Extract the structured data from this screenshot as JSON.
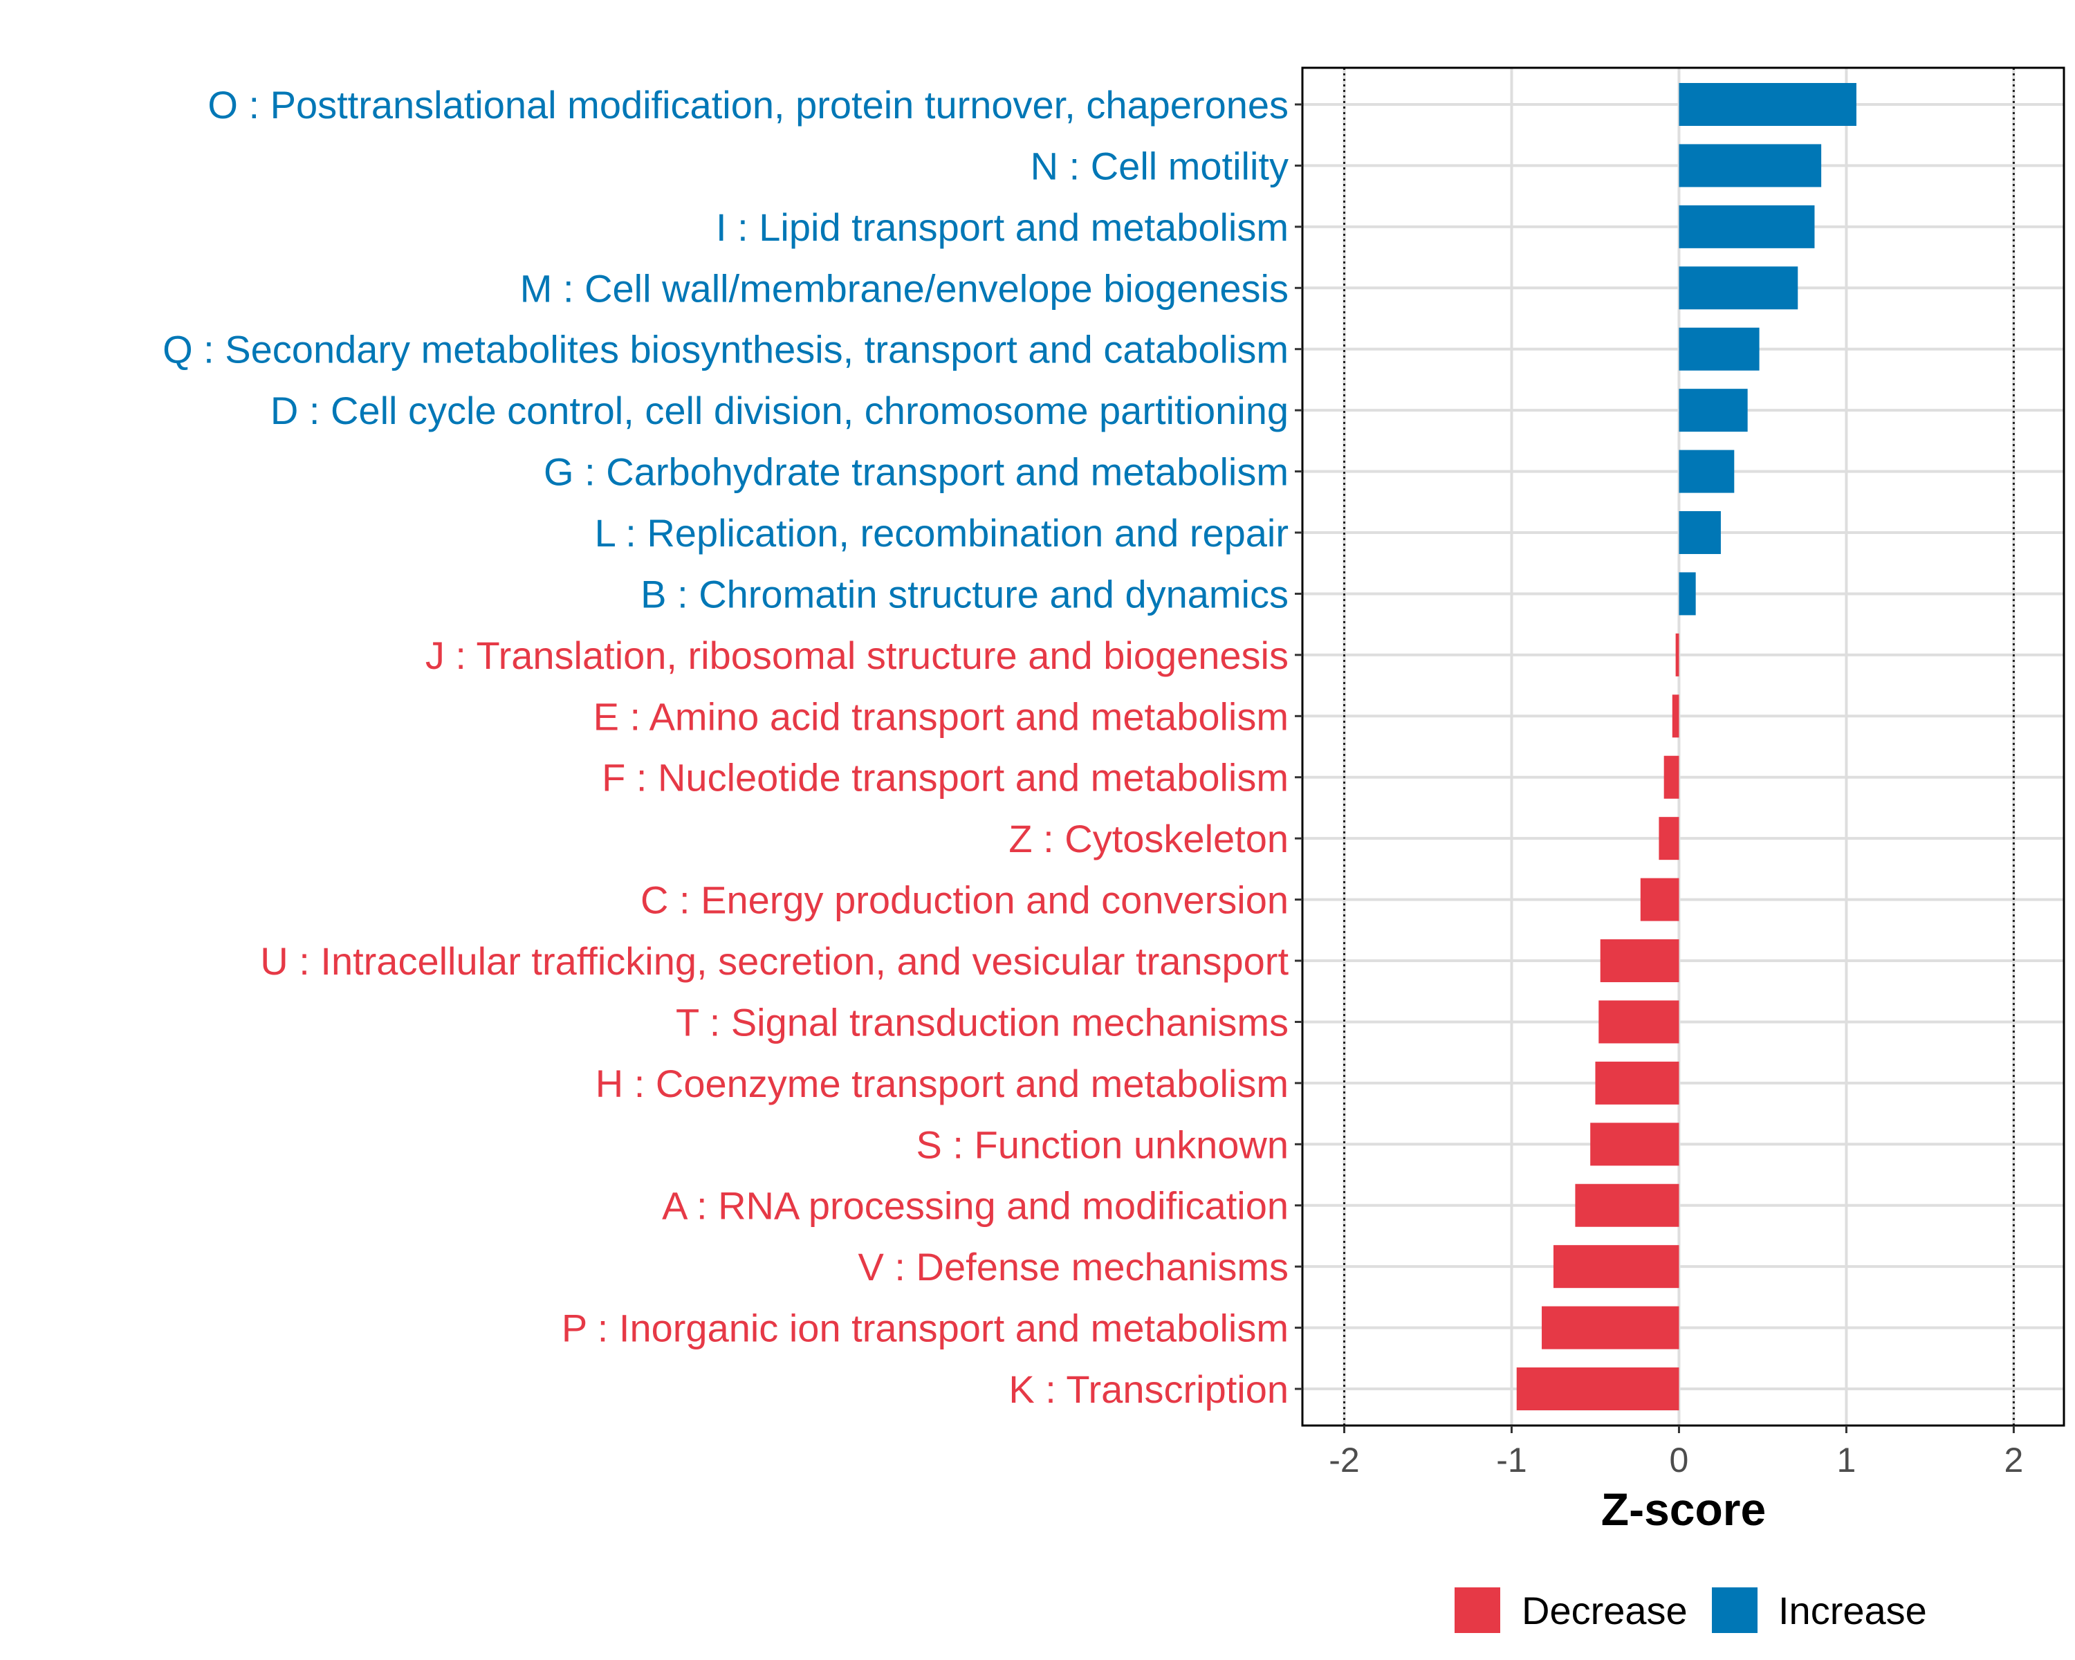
{
  "chart_data": {
    "type": "bar",
    "orientation": "horizontal",
    "xlabel": "Z-score",
    "xlim": [
      -2.25,
      2.3
    ],
    "xticks": [
      -2,
      -1,
      0,
      1,
      2
    ],
    "xtick_labels": [
      "-2",
      "-1",
      "0",
      "1",
      "2"
    ],
    "reference_lines": [
      -2,
      2
    ],
    "grid": true,
    "legend_position": "bottom",
    "legend": [
      {
        "key": "decrease",
        "label": "Decrease",
        "color": "#e63946"
      },
      {
        "key": "increase",
        "label": "Increase",
        "color": "#0077b6"
      }
    ],
    "categories": [
      {
        "label": "O : Posttranslational modification, protein turnover, chaperones",
        "value": 1.06,
        "direction": "increase"
      },
      {
        "label": "N : Cell motility",
        "value": 0.85,
        "direction": "increase"
      },
      {
        "label": "I : Lipid transport and metabolism",
        "value": 0.81,
        "direction": "increase"
      },
      {
        "label": "M : Cell wall/membrane/envelope biogenesis",
        "value": 0.71,
        "direction": "increase"
      },
      {
        "label": "Q : Secondary metabolites biosynthesis, transport and catabolism",
        "value": 0.48,
        "direction": "increase"
      },
      {
        "label": "D : Cell cycle control, cell division, chromosome partitioning",
        "value": 0.41,
        "direction": "increase"
      },
      {
        "label": "G : Carbohydrate transport and metabolism",
        "value": 0.33,
        "direction": "increase"
      },
      {
        "label": "L : Replication, recombination and repair",
        "value": 0.25,
        "direction": "increase"
      },
      {
        "label": "B : Chromatin structure and dynamics",
        "value": 0.1,
        "direction": "increase"
      },
      {
        "label": "J : Translation, ribosomal structure and biogenesis",
        "value": -0.02,
        "direction": "decrease"
      },
      {
        "label": "E : Amino acid transport and metabolism",
        "value": -0.04,
        "direction": "decrease"
      },
      {
        "label": "F : Nucleotide transport and metabolism",
        "value": -0.09,
        "direction": "decrease"
      },
      {
        "label": "Z : Cytoskeleton",
        "value": -0.12,
        "direction": "decrease"
      },
      {
        "label": "C : Energy production and conversion",
        "value": -0.23,
        "direction": "decrease"
      },
      {
        "label": "U : Intracellular trafficking, secretion, and vesicular transport",
        "value": -0.47,
        "direction": "decrease"
      },
      {
        "label": "T : Signal transduction mechanisms",
        "value": -0.48,
        "direction": "decrease"
      },
      {
        "label": "H : Coenzyme transport and metabolism",
        "value": -0.5,
        "direction": "decrease"
      },
      {
        "label": "S : Function unknown",
        "value": -0.53,
        "direction": "decrease"
      },
      {
        "label": "A : RNA processing and modification",
        "value": -0.62,
        "direction": "decrease"
      },
      {
        "label": "V : Defense mechanisms",
        "value": -0.75,
        "direction": "decrease"
      },
      {
        "label": "P : Inorganic ion transport and metabolism",
        "value": -0.82,
        "direction": "decrease"
      },
      {
        "label": "K : Transcription",
        "value": -0.97,
        "direction": "decrease"
      }
    ]
  }
}
